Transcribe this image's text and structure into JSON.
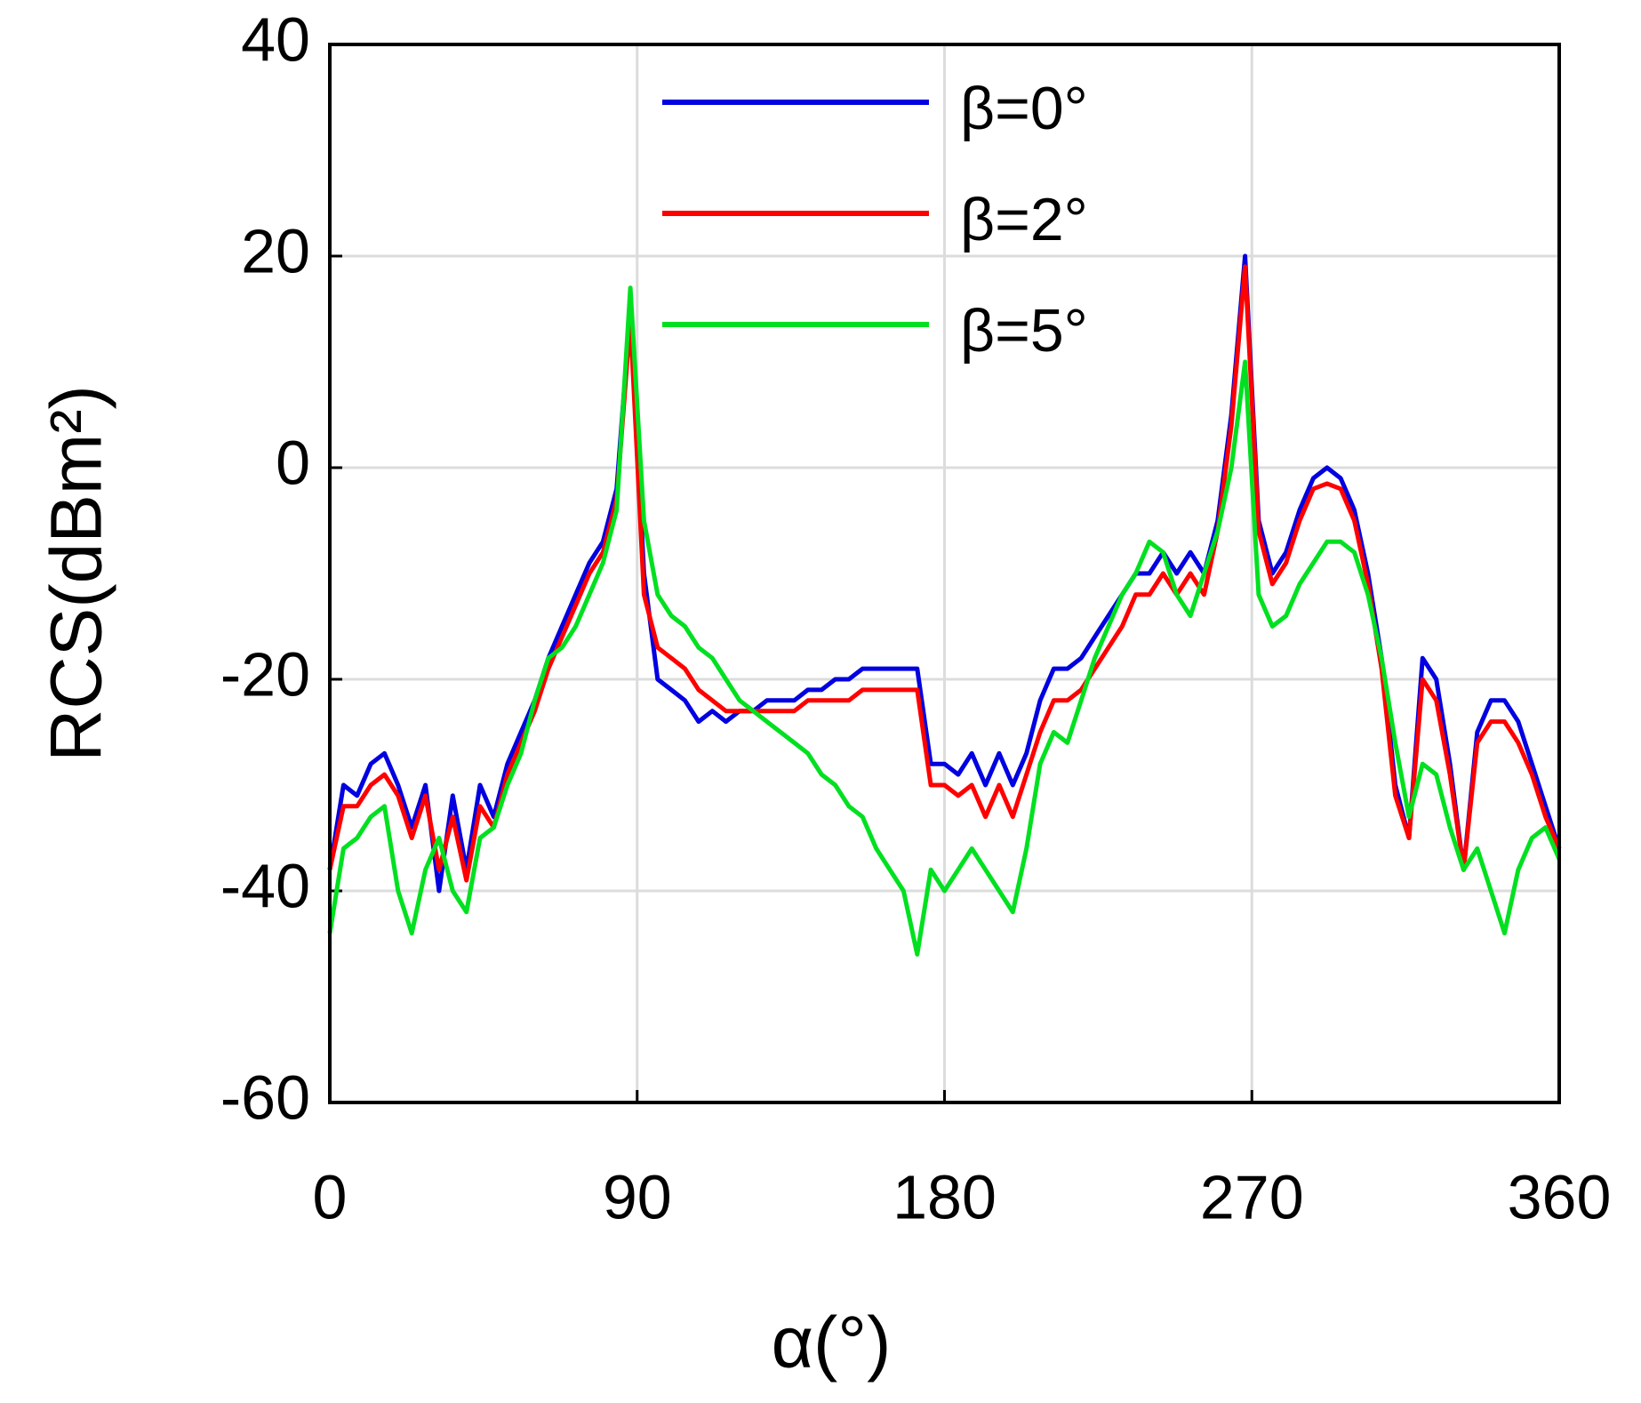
{
  "chart_data": {
    "type": "line",
    "x_label": "α(°)",
    "y_label": "RCS(dBm²)",
    "xlim": [
      0,
      360
    ],
    "xticks": [
      0,
      90,
      180,
      270,
      360
    ],
    "ylim": [
      -60,
      40
    ],
    "yticks": [
      -60,
      -40,
      -20,
      0,
      20,
      40
    ],
    "grid": true,
    "legend": "upper center",
    "x": [
      0,
      4,
      8,
      12,
      16,
      20,
      24,
      28,
      32,
      36,
      40,
      44,
      48,
      52,
      56,
      60,
      64,
      68,
      72,
      76,
      80,
      84,
      88,
      92,
      96,
      100,
      104,
      108,
      112,
      116,
      120,
      124,
      128,
      132,
      136,
      140,
      144,
      148,
      152,
      156,
      160,
      164,
      168,
      172,
      176,
      180,
      184,
      188,
      192,
      196,
      200,
      204,
      208,
      212,
      216,
      220,
      224,
      228,
      232,
      236,
      240,
      244,
      248,
      252,
      256,
      260,
      264,
      268,
      272,
      276,
      280,
      284,
      288,
      292,
      296,
      300,
      304,
      308,
      312,
      316,
      320,
      324,
      328,
      332,
      336,
      340,
      344,
      348,
      352,
      356,
      360
    ],
    "series": [
      {
        "name": "β=0°",
        "color": "#0000e0",
        "values": [
          -38,
          -30,
          -31,
          -28,
          -27,
          -30,
          -34,
          -30,
          -40,
          -31,
          -38,
          -30,
          -33,
          -28,
          -25,
          -22,
          -18,
          -15,
          -12,
          -9,
          -7,
          -2,
          15,
          -10,
          -20,
          -21,
          -22,
          -24,
          -23,
          -24,
          -23,
          -23,
          -22,
          -22,
          -22,
          -21,
          -21,
          -20,
          -20,
          -19,
          -19,
          -19,
          -19,
          -19,
          -28,
          -28,
          -29,
          -27,
          -30,
          -27,
          -30,
          -27,
          -22,
          -19,
          -19,
          -18,
          -16,
          -14,
          -12,
          -10,
          -10,
          -8,
          -10,
          -8,
          -10,
          -5,
          5,
          20,
          -5,
          -10,
          -8,
          -4,
          -1,
          0,
          -1,
          -4,
          -10,
          -18,
          -30,
          -35,
          -18,
          -20,
          -28,
          -38,
          -25,
          -22,
          -22,
          -24,
          -28,
          -32,
          -36
        ]
      },
      {
        "name": "β=2°",
        "color": "#ff0000",
        "values": [
          -38,
          -32,
          -32,
          -30,
          -29,
          -31,
          -35,
          -31,
          -38,
          -33,
          -39,
          -32,
          -34,
          -29,
          -26,
          -23,
          -19,
          -16,
          -13,
          -10,
          -8,
          -3,
          14,
          -12,
          -17,
          -18,
          -19,
          -21,
          -22,
          -23,
          -23,
          -23,
          -23,
          -23,
          -23,
          -22,
          -22,
          -22,
          -22,
          -21,
          -21,
          -21,
          -21,
          -21,
          -30,
          -30,
          -31,
          -30,
          -33,
          -30,
          -33,
          -29,
          -25,
          -22,
          -22,
          -21,
          -19,
          -17,
          -15,
          -12,
          -12,
          -10,
          -12,
          -10,
          -12,
          -6,
          4,
          19,
          -6,
          -11,
          -9,
          -5,
          -2,
          -1.5,
          -2,
          -5,
          -11,
          -19,
          -31,
          -35,
          -20,
          -22,
          -29,
          -38,
          -26,
          -24,
          -24,
          -26,
          -29,
          -33,
          -36
        ]
      },
      {
        "name": "β=5°",
        "color": "#00e020",
        "values": [
          -44,
          -36,
          -35,
          -33,
          -32,
          -40,
          -44,
          -38,
          -35,
          -40,
          -42,
          -35,
          -34,
          -30,
          -27,
          -22,
          -18,
          -17,
          -15,
          -12,
          -9,
          -4,
          17,
          -5,
          -12,
          -14,
          -15,
          -17,
          -18,
          -20,
          -22,
          -23,
          -24,
          -25,
          -26,
          -27,
          -29,
          -30,
          -32,
          -33,
          -36,
          -38,
          -40,
          -46,
          -38,
          -40,
          -38,
          -36,
          -38,
          -40,
          -42,
          -36,
          -28,
          -25,
          -26,
          -22,
          -18,
          -15,
          -12,
          -10,
          -7,
          -8,
          -12,
          -14,
          -10,
          -6,
          0,
          10,
          -12,
          -15,
          -14,
          -11,
          -9,
          -7,
          -7,
          -8,
          -12,
          -18,
          -26,
          -33,
          -28,
          -29,
          -34,
          -38,
          -36,
          -40,
          -44,
          -38,
          -35,
          -34,
          -37
        ]
      }
    ]
  }
}
